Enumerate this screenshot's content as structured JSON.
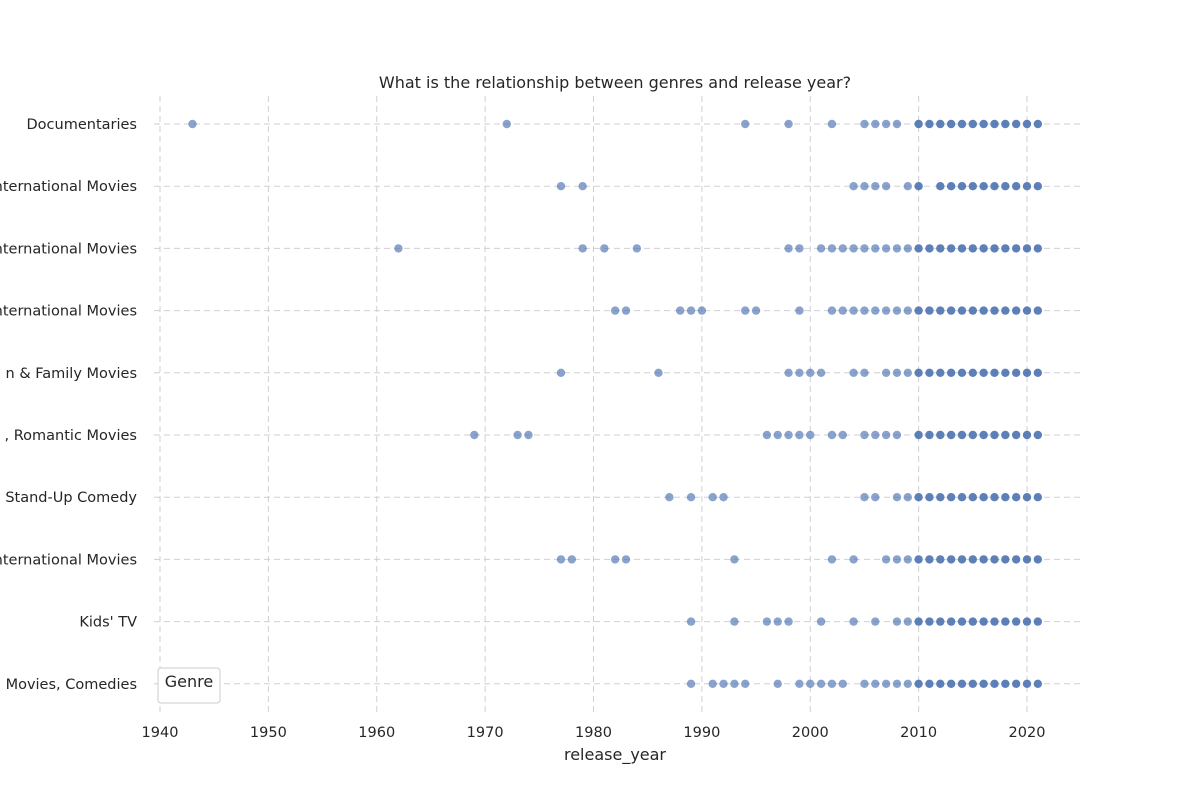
{
  "chart_data": {
    "type": "scatter",
    "title": "What is the relationship between genres and release year?",
    "xlabel": "release_year",
    "ylabel": "",
    "xlim": [
      1940,
      2025
    ],
    "x_ticks": [
      1940,
      1950,
      1960,
      1970,
      1980,
      1990,
      2000,
      2010,
      2020
    ],
    "grid": true,
    "legend_title": "Genre",
    "legend_position": "lower-left",
    "color": "#4c72b0",
    "categories": [
      "Documentaries",
      "International Movies",
      "International Movies",
      "International Movies",
      "n & Family Movies",
      ", Romantic Movies",
      "Stand-Up Comedy",
      "International Movies",
      "Kids' TV",
      "Movies, Comedies"
    ],
    "category_label_prefixes": [
      "",
      "ter",
      "ter",
      "ter",
      "",
      "",
      "",
      "ter",
      "",
      ""
    ],
    "points": [
      [
        1943,
        1972,
        1994,
        1998,
        2002,
        2005,
        2006,
        2007,
        2008,
        2010,
        2011,
        2012,
        2013,
        2014,
        2015,
        2016,
        2017,
        2018,
        2019,
        2020,
        2021
      ],
      [
        1977,
        1979,
        2004,
        2005,
        2006,
        2007,
        2009,
        2010,
        2012,
        2013,
        2014,
        2015,
        2016,
        2017,
        2018,
        2019,
        2020,
        2021
      ],
      [
        1962,
        1979,
        1981,
        1984,
        1998,
        1999,
        2001,
        2002,
        2003,
        2004,
        2005,
        2006,
        2007,
        2008,
        2009,
        2010,
        2011,
        2012,
        2013,
        2014,
        2015,
        2016,
        2017,
        2018,
        2019,
        2020,
        2021
      ],
      [
        1982,
        1983,
        1988,
        1989,
        1990,
        1994,
        1995,
        1999,
        2002,
        2003,
        2004,
        2005,
        2006,
        2007,
        2008,
        2009,
        2010,
        2011,
        2012,
        2013,
        2014,
        2015,
        2016,
        2017,
        2018,
        2019,
        2020,
        2021
      ],
      [
        1977,
        1986,
        1998,
        1999,
        2000,
        2001,
        2004,
        2005,
        2007,
        2008,
        2009,
        2010,
        2011,
        2012,
        2013,
        2014,
        2015,
        2016,
        2017,
        2018,
        2019,
        2020,
        2021
      ],
      [
        1969,
        1973,
        1974,
        1996,
        1997,
        1998,
        1999,
        2000,
        2002,
        2003,
        2005,
        2006,
        2007,
        2008,
        2010,
        2011,
        2012,
        2013,
        2014,
        2015,
        2016,
        2017,
        2018,
        2019,
        2020,
        2021
      ],
      [
        1987,
        1989,
        1991,
        1992,
        2005,
        2006,
        2008,
        2009,
        2010,
        2011,
        2012,
        2013,
        2014,
        2015,
        2016,
        2017,
        2018,
        2019,
        2020,
        2021
      ],
      [
        1977,
        1978,
        1982,
        1983,
        1993,
        2002,
        2004,
        2007,
        2008,
        2009,
        2010,
        2011,
        2012,
        2013,
        2014,
        2015,
        2016,
        2017,
        2018,
        2019,
        2020,
        2021
      ],
      [
        1989,
        1993,
        1996,
        1997,
        1998,
        2001,
        2004,
        2006,
        2008,
        2009,
        2010,
        2011,
        2012,
        2013,
        2014,
        2015,
        2016,
        2017,
        2018,
        2019,
        2020,
        2021
      ],
      [
        1989,
        1991,
        1992,
        1993,
        1994,
        1997,
        1999,
        2000,
        2001,
        2002,
        2003,
        2005,
        2006,
        2007,
        2008,
        2009,
        2010,
        2011,
        2012,
        2013,
        2014,
        2015,
        2016,
        2017,
        2018,
        2019,
        2020,
        2021
      ]
    ]
  }
}
